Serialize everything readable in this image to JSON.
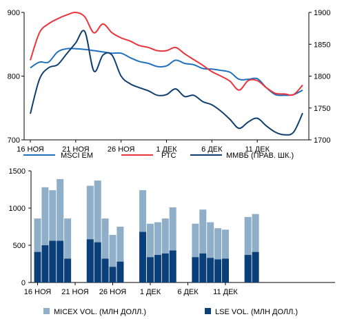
{
  "chart_data": [
    {
      "type": "line",
      "title": "",
      "xlabel": "",
      "ylabel": "",
      "x_ticks": [
        "16 НОЯ",
        "21 НОЯ",
        "26 НОЯ",
        "1 ДЕК",
        "6 ДЕК",
        "11 ДЕК"
      ],
      "x_tick_index": [
        0,
        5,
        10,
        15,
        20,
        25
      ],
      "y_left": {
        "ticks": [
          "700",
          "800",
          "900"
        ],
        "min": 700,
        "max": 900
      },
      "y_right": {
        "ticks": [
          "1700",
          "1750",
          "1800",
          "1850",
          "1900"
        ],
        "min": 1700,
        "max": 1900
      },
      "series": [
        {
          "name": "MSCI EM",
          "axis": "left",
          "color": "#1f6fbf",
          "x": [
            0,
            1,
            2,
            3,
            4,
            5,
            6,
            7,
            8,
            9,
            10,
            11,
            12,
            13,
            14,
            15,
            16,
            17,
            18,
            19,
            20,
            21,
            22,
            23,
            24,
            25,
            26,
            27,
            28,
            29,
            30
          ],
          "values": [
            813,
            822,
            822,
            838,
            843,
            843,
            842,
            840,
            838,
            836,
            836,
            829,
            823,
            820,
            815,
            816,
            825,
            820,
            818,
            812,
            811,
            809,
            806,
            795,
            795,
            796,
            782,
            771,
            770,
            771,
            778
          ]
        },
        {
          "name": "РТС",
          "axis": "left",
          "color": "#e8353c",
          "x": [
            0,
            1,
            2,
            3,
            4,
            5,
            6,
            7,
            8,
            9,
            10,
            11,
            12,
            13,
            14,
            15,
            16,
            17,
            18,
            19,
            20,
            21,
            22,
            23,
            24,
            25,
            26,
            27,
            28,
            29,
            30
          ],
          "values": [
            825,
            868,
            882,
            890,
            896,
            900,
            893,
            868,
            882,
            868,
            860,
            855,
            848,
            845,
            840,
            840,
            845,
            835,
            826,
            817,
            807,
            800,
            792,
            778,
            793,
            793,
            782,
            773,
            772,
            771,
            786
          ]
        },
        {
          "name": "ММВБ (ПРАВ. ШК.)",
          "axis": "right",
          "color": "#0e3e6e",
          "x": [
            0,
            1,
            2,
            3,
            4,
            5,
            6,
            7,
            8,
            9,
            10,
            11,
            12,
            13,
            14,
            15,
            16,
            17,
            18,
            19,
            20,
            21,
            22,
            23,
            24,
            25,
            26,
            27,
            28,
            29,
            30
          ],
          "values": [
            1741,
            1795,
            1813,
            1818,
            1835,
            1852,
            1870,
            1808,
            1833,
            1833,
            1800,
            1788,
            1782,
            1777,
            1770,
            1771,
            1780,
            1768,
            1770,
            1760,
            1755,
            1745,
            1732,
            1718,
            1728,
            1734,
            1722,
            1712,
            1708,
            1712,
            1742
          ]
        }
      ],
      "legend": "bottom"
    },
    {
      "type": "bar",
      "title": "",
      "xlabel": "",
      "ylabel": "",
      "x_ticks": [
        "16 НОЯ",
        "21 НОЯ",
        "26 НОЯ",
        "1 ДЕК",
        "6 ДЕК",
        "11 ДЕК"
      ],
      "x_tick_index": [
        0,
        5,
        10,
        15,
        20,
        25
      ],
      "y": {
        "ticks": [
          "0",
          "500",
          "1000",
          "1500"
        ],
        "min": 0,
        "max": 1500
      },
      "bar_index": [
        0,
        1,
        2,
        3,
        4,
        7,
        8,
        9,
        10,
        11,
        14,
        15,
        16,
        17,
        18,
        21,
        22,
        23,
        24,
        25,
        28,
        29
      ],
      "series": [
        {
          "name": "MICEX VOL. (МЛН ДОЛЛ.)",
          "color": "#8fafc8",
          "values": [
            860,
            1280,
            1240,
            1390,
            860,
            1300,
            1370,
            860,
            640,
            750,
            1240,
            790,
            810,
            860,
            1010,
            790,
            980,
            810,
            730,
            710,
            880,
            920
          ]
        },
        {
          "name": "LSE VOL. (МЛН ДОЛЛ.)",
          "color": "#0b3f7a",
          "values": [
            410,
            500,
            560,
            560,
            320,
            580,
            540,
            320,
            210,
            280,
            680,
            340,
            370,
            390,
            430,
            340,
            390,
            330,
            310,
            320,
            370,
            410
          ]
        }
      ],
      "legend": "bottom"
    }
  ]
}
